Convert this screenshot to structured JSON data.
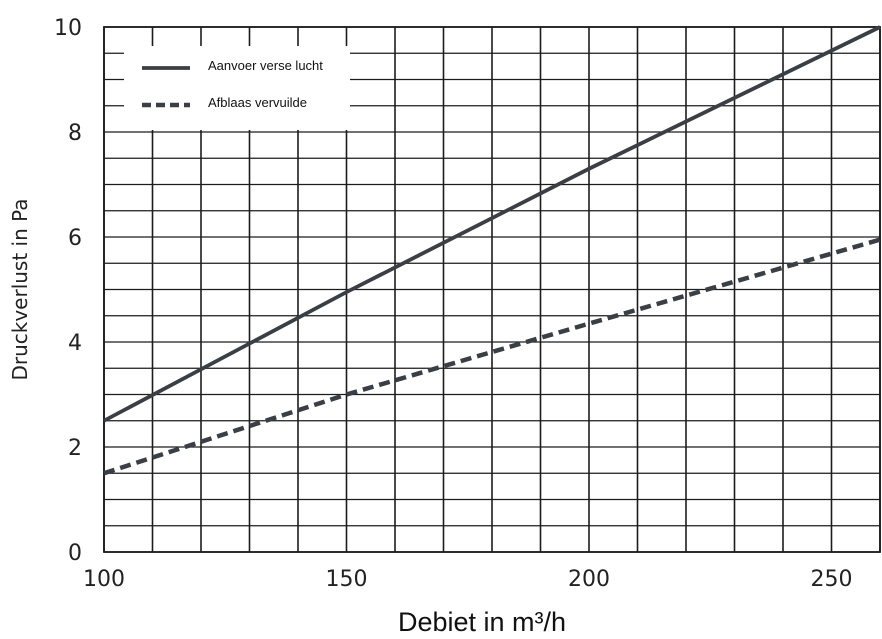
{
  "chart_data": {
    "type": "line",
    "xlabel": "Debiet in m³/h",
    "ylabel": "Druckverlust in Pa",
    "xlim": [
      100,
      260
    ],
    "ylim": [
      0,
      10
    ],
    "x_ticks": [
      "100",
      "150",
      "200",
      "250"
    ],
    "y_ticks": [
      "0",
      "2",
      "4",
      "6",
      "8",
      "10"
    ],
    "grid": true,
    "legend_position": "top-left",
    "series": [
      {
        "name": "Aanvoer verse lucht",
        "style": "solid",
        "color": "#3a3f45",
        "x": [
          100,
          150,
          200,
          260
        ],
        "y": [
          2.5,
          4.95,
          7.3,
          10.0
        ]
      },
      {
        "name": "Afblaas vervuilde",
        "style": "dashed",
        "color": "#3a3f45",
        "x": [
          100,
          150,
          200,
          260
        ],
        "y": [
          1.5,
          3.0,
          4.35,
          5.95
        ]
      }
    ]
  }
}
